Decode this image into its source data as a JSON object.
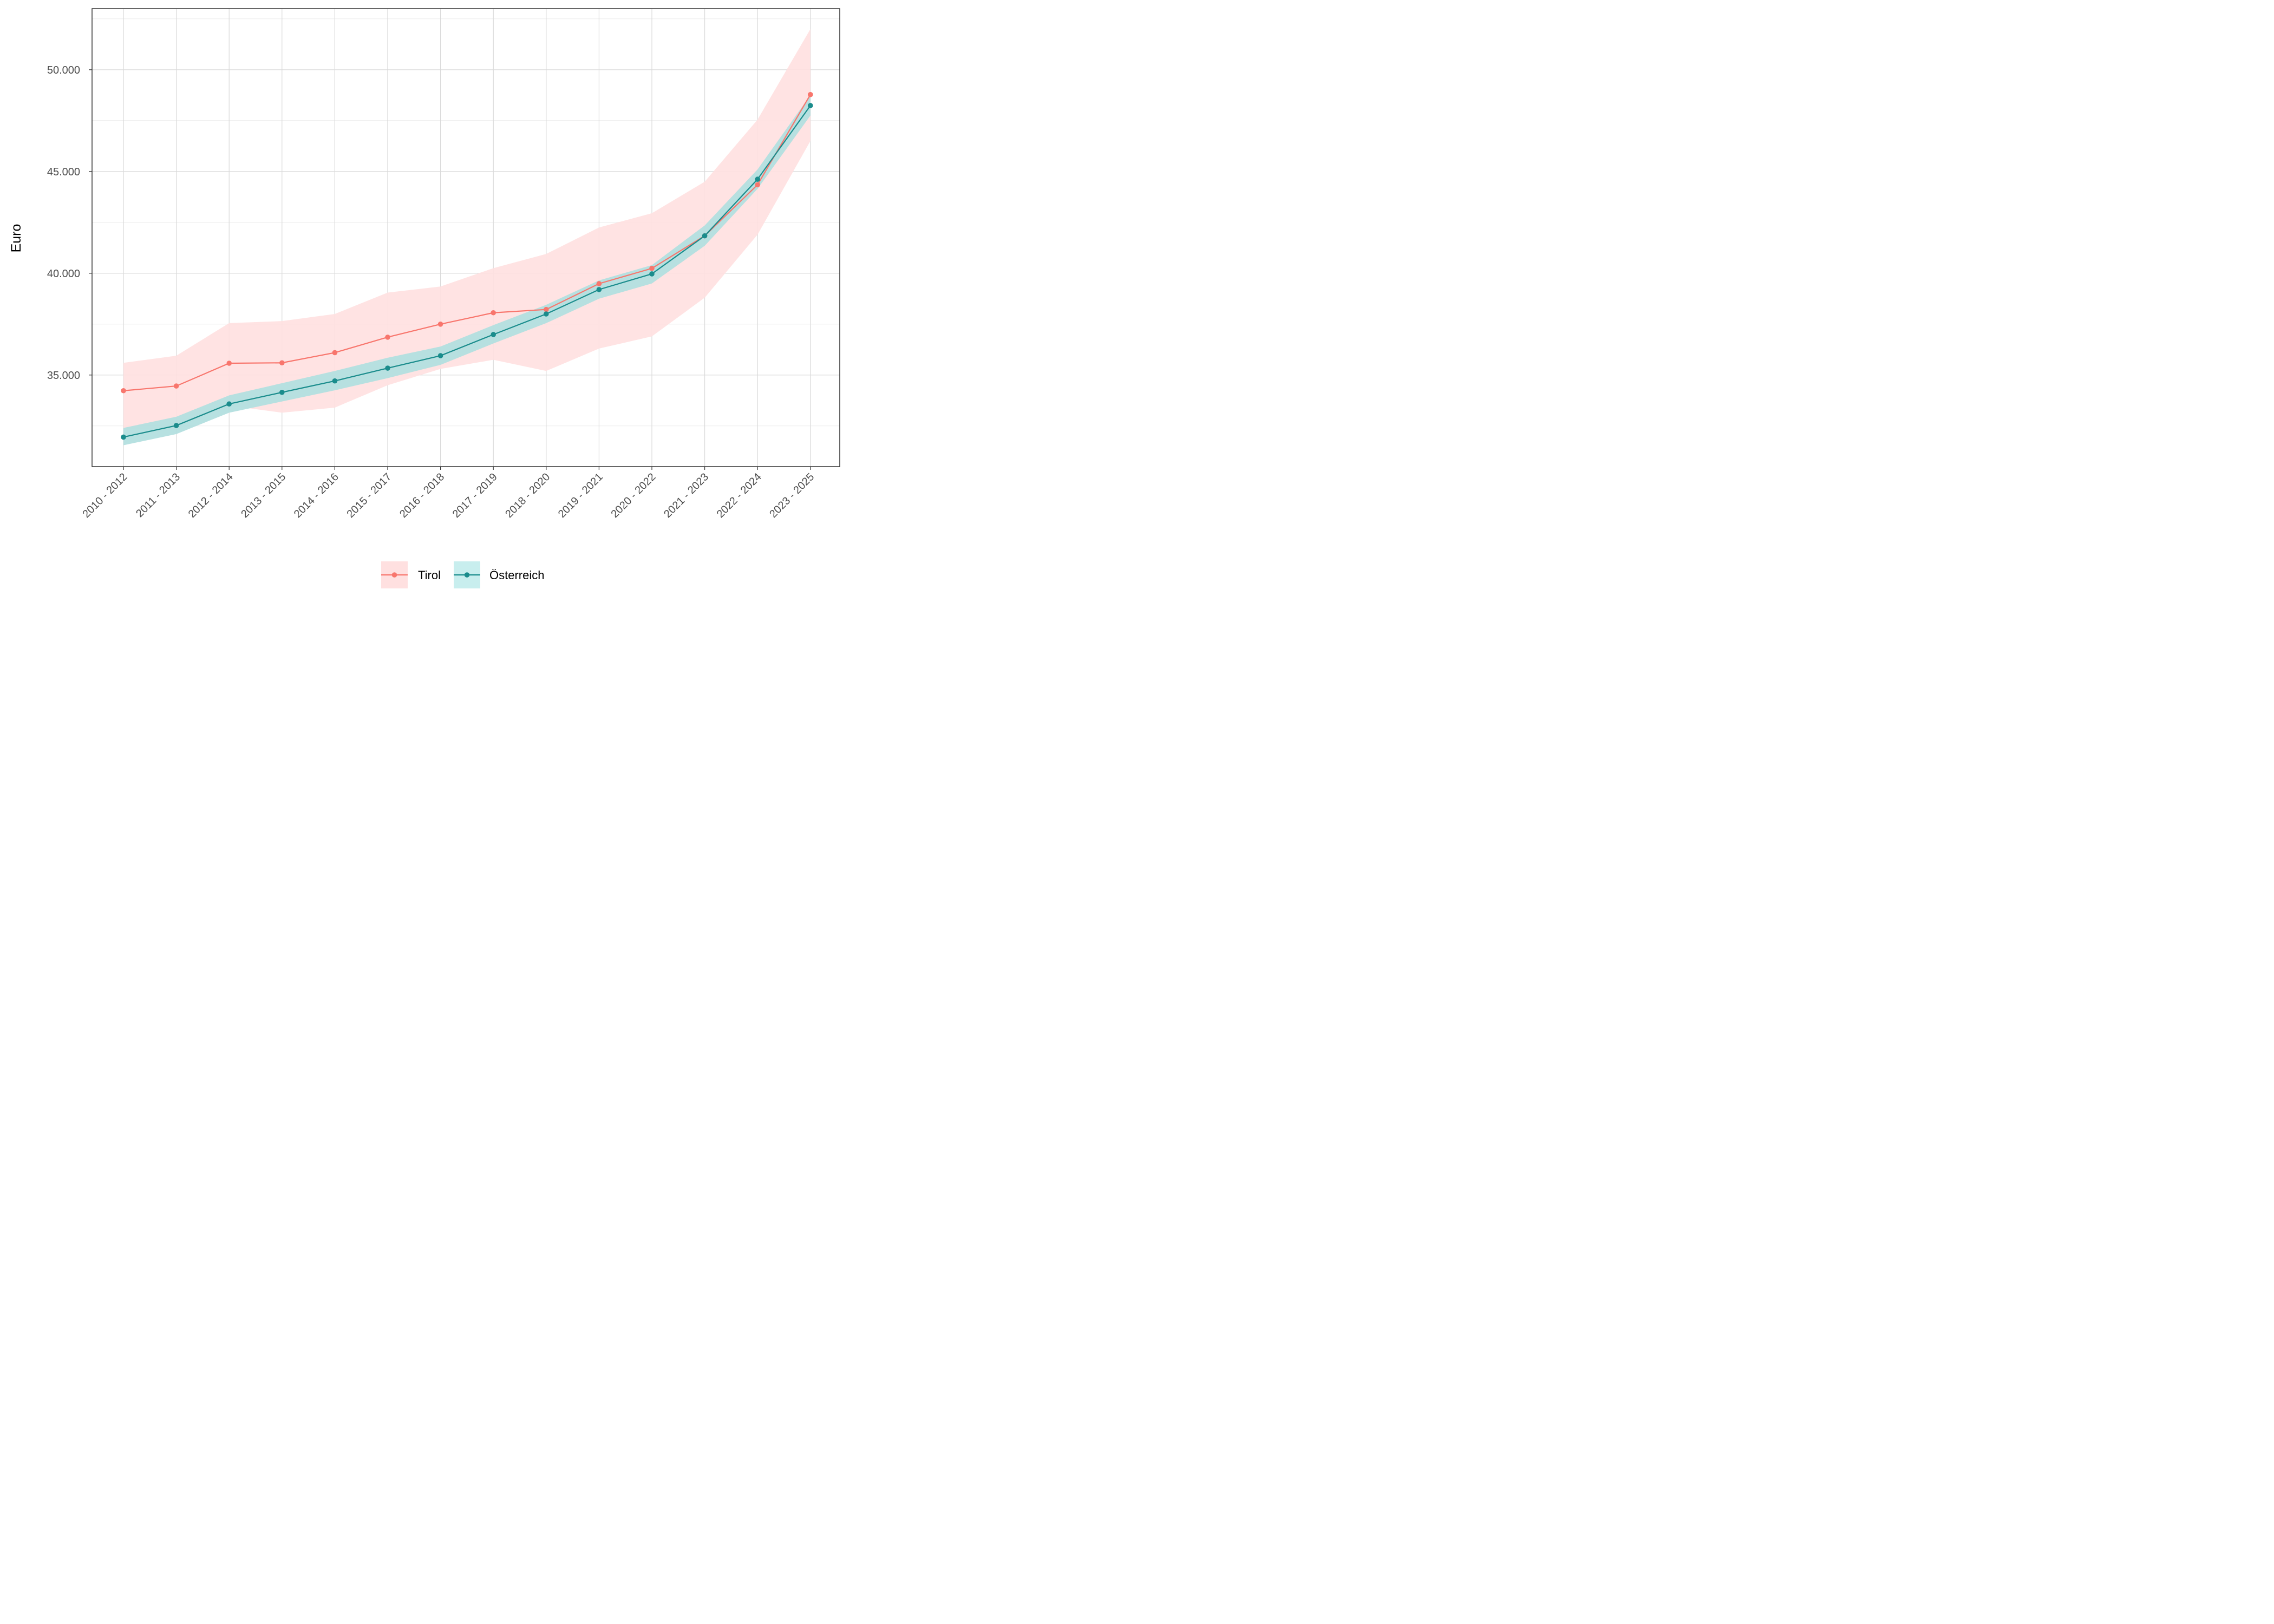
{
  "chart_data": {
    "type": "line",
    "title": "",
    "xlabel": "",
    "ylabel": "Euro",
    "categories": [
      "2010 - 2012",
      "2011 - 2013",
      "2012 - 2014",
      "2013 - 2015",
      "2014 - 2016",
      "2015 - 2017",
      "2016 - 2018",
      "2017 - 2019",
      "2018 - 2020",
      "2019 - 2021",
      "2020 - 2022",
      "2021 - 2023",
      "2022 - 2024",
      "2023 - 2025"
    ],
    "ylim": [
      30500,
      53000
    ],
    "y_ticks": [
      35000,
      40000,
      45000,
      50000
    ],
    "y_tick_labels": [
      "35.000",
      "40.000",
      "45.000",
      "50.000"
    ],
    "grid": true,
    "legend_position": "bottom",
    "series": [
      {
        "name": "Tirol",
        "color": "#F8766D",
        "band_color": "#FFE0E0",
        "values": [
          34230,
          34460,
          35580,
          35600,
          36100,
          36860,
          37500,
          38060,
          38220,
          39490,
          40240,
          41840,
          44350,
          48780
        ],
        "lower": [
          32350,
          32400,
          33500,
          33150,
          33400,
          34500,
          35300,
          35750,
          35200,
          36300,
          36900,
          38800,
          41900,
          46500
        ],
        "upper": [
          35600,
          35950,
          37550,
          37650,
          38000,
          39050,
          39350,
          40250,
          40950,
          42250,
          42950,
          44500,
          47550,
          52000
        ]
      },
      {
        "name": "Österreich",
        "color": "#1A8C8C",
        "band_color": "#C8EEEE",
        "values": [
          31950,
          32520,
          33580,
          34150,
          34710,
          35340,
          35950,
          36990,
          38000,
          39200,
          39970,
          41840,
          44620,
          48240
        ],
        "lower": [
          31550,
          32100,
          33150,
          33700,
          34250,
          34850,
          35500,
          36550,
          37550,
          38750,
          39500,
          41350,
          44150,
          47750
        ],
        "upper": [
          32400,
          32950,
          34000,
          34600,
          35200,
          35850,
          36400,
          37450,
          38450,
          39650,
          40400,
          42350,
          45100,
          48750
        ]
      }
    ]
  }
}
